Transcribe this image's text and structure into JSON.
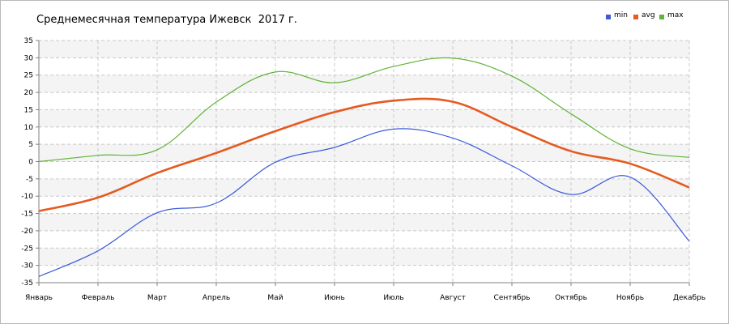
{
  "chart_data": {
    "type": "line",
    "title": "Среднемесячная температура Ижевск  2017 г.",
    "categories": [
      "Январь",
      "Февраль",
      "Март",
      "Апрель",
      "Май",
      "Июнь",
      "Июль",
      "Август",
      "Сентябрь",
      "Октябрь",
      "Ноябрь",
      "Декабрь"
    ],
    "yticks": [
      35,
      30,
      25,
      20,
      15,
      10,
      5,
      0,
      -5,
      -10,
      -15,
      -20,
      -25,
      -30,
      -35
    ],
    "ylim": [
      -35,
      35
    ],
    "grid": true,
    "legend_position": "top-right",
    "series": [
      {
        "name": "min",
        "color": "#3b5bdb",
        "values": [
          -33.2,
          -25.8,
          -14.8,
          -12.0,
          -0.2,
          4.1,
          9.4,
          6.8,
          -1.2,
          -9.5,
          -4.5,
          -23.0
        ]
      },
      {
        "name": "avg",
        "color": "#e55a1f",
        "values": [
          -14.3,
          -10.4,
          -3.3,
          2.5,
          8.8,
          14.3,
          17.6,
          17.3,
          10.0,
          3.0,
          -0.6,
          -7.5
        ]
      },
      {
        "name": "max",
        "color": "#5fb336",
        "values": [
          0.0,
          1.8,
          3.4,
          17.2,
          25.9,
          22.8,
          27.5,
          29.9,
          24.7,
          13.8,
          3.7,
          1.2
        ]
      }
    ]
  }
}
